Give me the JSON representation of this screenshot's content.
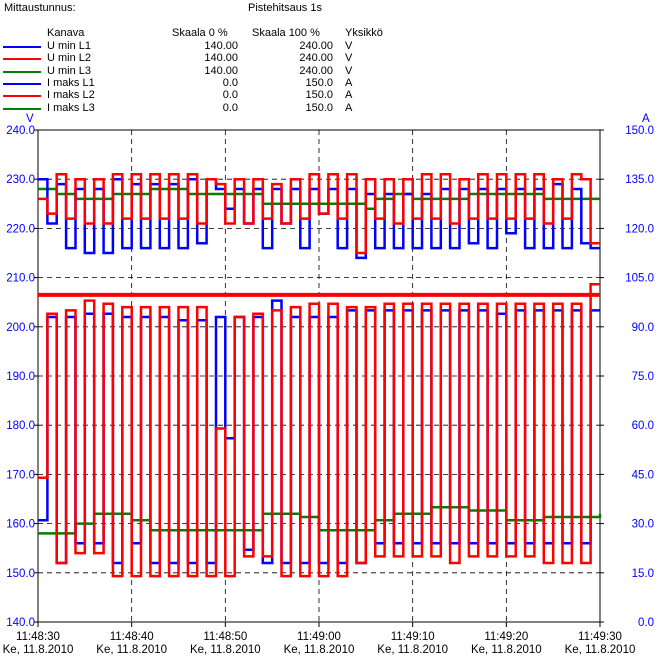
{
  "header": {
    "title_label": "Mittaustunnus:",
    "record_name": "Pistehitsaus 1s",
    "col_channel": "Kanava",
    "col_scale0": "Skaala 0 %",
    "col_scale100": "Skaala 100 %",
    "col_unit": "Yksikkö"
  },
  "legend": [
    {
      "name": "U min L1",
      "scale0": "140.00",
      "scale100": "240.00",
      "unit": "V",
      "color": "#0000ff"
    },
    {
      "name": "U min L2",
      "scale0": "140.00",
      "scale100": "240.00",
      "unit": "V",
      "color": "#ff0000"
    },
    {
      "name": "U min L3",
      "scale0": "140.00",
      "scale100": "240.00",
      "unit": "V",
      "color": "#008000"
    },
    {
      "name": "I maks L1",
      "scale0": "0.0",
      "scale100": "150.0",
      "unit": "A",
      "color": "#0000ff"
    },
    {
      "name": "I maks L2",
      "scale0": "0.0",
      "scale100": "150.0",
      "unit": "A",
      "color": "#ff0000"
    },
    {
      "name": "I maks L3",
      "scale0": "0.0",
      "scale100": "150.0",
      "unit": "A",
      "color": "#008000"
    }
  ],
  "chart_data": {
    "type": "line",
    "title": "",
    "left_axis": {
      "unit": "V",
      "min": 140,
      "max": 240,
      "ticks": [
        "140.0",
        "150.0",
        "160.0",
        "170.0",
        "180.0",
        "190.0",
        "200.0",
        "210.0",
        "220.0",
        "230.0",
        "240.0"
      ]
    },
    "right_axis": {
      "unit": "A",
      "min": 0,
      "max": 150,
      "ticks": [
        "0.0",
        "15.0",
        "30.0",
        "45.0",
        "60.0",
        "75.0",
        "90.0",
        "105.0",
        "120.0",
        "135.0",
        "150.0"
      ]
    },
    "x_axis": {
      "start_s": 0,
      "end_s": 60,
      "ticks": [
        {
          "t": 0,
          "time": "11:48:30",
          "date": "Ke, 11.8.2010"
        },
        {
          "t": 10,
          "time": "11:48:40",
          "date": "Ke, 11.8.2010"
        },
        {
          "t": 20,
          "time": "11:48:50",
          "date": "Ke, 11.8.2010"
        },
        {
          "t": 30,
          "time": "11:49:00",
          "date": "Ke, 11.8.2010"
        },
        {
          "t": 40,
          "time": "11:49:10",
          "date": "Ke, 11.8.2010"
        },
        {
          "t": 50,
          "time": "11:49:20",
          "date": "Ke, 11.8.2010"
        },
        {
          "t": 60,
          "time": "11:49:30",
          "date": "Ke, 11.8.2010"
        }
      ]
    },
    "grid": true,
    "reference_line": {
      "value": 206.5,
      "axis": "left",
      "color": "#ff0000"
    },
    "series": [
      {
        "name": "U min L1",
        "axis": "left",
        "color": "#0000ff",
        "width": 2.5,
        "x": [
          0,
          1,
          2,
          3,
          4,
          5,
          6,
          7,
          8,
          9,
          10,
          11,
          12,
          13,
          14,
          15,
          16,
          17,
          18,
          19,
          20,
          21,
          22,
          23,
          24,
          25,
          26,
          27,
          28,
          29,
          30,
          31,
          32,
          33,
          34,
          35,
          36,
          37,
          38,
          39,
          40,
          41,
          42,
          43,
          44,
          45,
          46,
          47,
          48,
          49,
          50,
          51,
          52,
          53,
          54,
          55,
          56,
          57,
          58,
          59,
          60
        ],
        "y": [
          230,
          221,
          229,
          216,
          228,
          215,
          228,
          215,
          230,
          216,
          229,
          216,
          229,
          216,
          229,
          216,
          230,
          217,
          230,
          228,
          224,
          228,
          221,
          228,
          216,
          228,
          221,
          228,
          216,
          228,
          223,
          228,
          216,
          228,
          214,
          227,
          216,
          227,
          216,
          227,
          216,
          227,
          216,
          228,
          216,
          228,
          217,
          228,
          216,
          228,
          219,
          228,
          216,
          228,
          216,
          229,
          216,
          228,
          217,
          216,
          216
        ]
      },
      {
        "name": "U min L2",
        "axis": "left",
        "color": "#ff0000",
        "width": 2.5,
        "x": [
          0,
          1,
          2,
          3,
          4,
          5,
          6,
          7,
          8,
          9,
          10,
          11,
          12,
          13,
          14,
          15,
          16,
          17,
          18,
          19,
          20,
          21,
          22,
          23,
          24,
          25,
          26,
          27,
          28,
          29,
          30,
          31,
          32,
          33,
          34,
          35,
          36,
          37,
          38,
          39,
          40,
          41,
          42,
          43,
          44,
          45,
          46,
          47,
          48,
          49,
          50,
          51,
          52,
          53,
          54,
          55,
          56,
          57,
          58,
          59,
          60
        ],
        "y": [
          226,
          223,
          231,
          222,
          230,
          221,
          230,
          221,
          231,
          222,
          231,
          222,
          231,
          222,
          231,
          222,
          231,
          221,
          230,
          229,
          221,
          230,
          221,
          230,
          222,
          229,
          221,
          230,
          222,
          231,
          223,
          231,
          222,
          231,
          215,
          230,
          222,
          230,
          221,
          230,
          222,
          231,
          222,
          231,
          221,
          230,
          222,
          231,
          222,
          231,
          222,
          231,
          222,
          231,
          221,
          230,
          222,
          231,
          230,
          217,
          217
        ]
      },
      {
        "name": "U min L3",
        "axis": "left",
        "color": "#008000",
        "width": 2.5,
        "x": [
          0,
          2,
          4,
          6,
          8,
          10,
          12,
          14,
          16,
          18,
          20,
          22,
          24,
          26,
          28,
          30,
          32,
          34,
          35,
          36,
          38,
          40,
          42,
          44,
          46,
          48,
          50,
          52,
          54,
          56,
          58,
          60
        ],
        "y": [
          228,
          227,
          226,
          226,
          227,
          227,
          228,
          228,
          227,
          227,
          227,
          227,
          225,
          225,
          225,
          225,
          225,
          225,
          224,
          226,
          227,
          226,
          226,
          226,
          227,
          227,
          227,
          227,
          226,
          226,
          226,
          226
        ]
      },
      {
        "name": "I maks L1",
        "axis": "right",
        "color": "#0000ff",
        "width": 2.5,
        "x": [
          0,
          1,
          2,
          3,
          4,
          5,
          6,
          7,
          8,
          9,
          10,
          11,
          12,
          13,
          14,
          15,
          16,
          17,
          18,
          19,
          20,
          21,
          22,
          23,
          24,
          25,
          26,
          27,
          28,
          29,
          30,
          31,
          32,
          33,
          34,
          35,
          36,
          37,
          38,
          39,
          40,
          41,
          42,
          43,
          44,
          45,
          46,
          47,
          48,
          49,
          50,
          51,
          52,
          53,
          54,
          55,
          56,
          57,
          58,
          59,
          60
        ],
        "y": [
          31,
          93,
          18,
          93,
          24,
          94,
          24,
          94,
          18,
          93,
          24,
          93,
          18,
          93,
          18,
          92,
          18,
          92,
          18,
          93,
          56,
          93,
          22,
          93,
          18,
          98,
          18,
          93,
          18,
          93,
          18,
          93,
          18,
          95,
          18,
          95,
          24,
          95,
          24,
          95,
          24,
          95,
          24,
          95,
          24,
          95,
          24,
          95,
          24,
          94,
          24,
          95,
          24,
          95,
          24,
          95,
          24,
          95,
          24,
          95,
          95
        ]
      },
      {
        "name": "I maks L2",
        "axis": "right",
        "color": "#ff0000",
        "width": 2.5,
        "x": [
          0,
          1,
          2,
          3,
          4,
          5,
          6,
          7,
          8,
          9,
          10,
          11,
          12,
          13,
          14,
          15,
          16,
          17,
          18,
          19,
          20,
          21,
          22,
          23,
          24,
          25,
          26,
          27,
          28,
          29,
          30,
          31,
          32,
          33,
          34,
          35,
          36,
          37,
          38,
          39,
          40,
          41,
          42,
          43,
          44,
          45,
          46,
          47,
          48,
          49,
          50,
          51,
          52,
          53,
          54,
          55,
          56,
          57,
          58,
          59,
          60
        ],
        "y": [
          44,
          94,
          18,
          95,
          21,
          98,
          21,
          97,
          14,
          96,
          14,
          96,
          14,
          96,
          14,
          96,
          14,
          96,
          14,
          59,
          14,
          93,
          20,
          94,
          20,
          95,
          14,
          96,
          14,
          97,
          14,
          97,
          14,
          96,
          18,
          96,
          20,
          97,
          20,
          97,
          20,
          97,
          20,
          97,
          18,
          97,
          20,
          97,
          20,
          97,
          20,
          97,
          20,
          97,
          18,
          97,
          18,
          97,
          18,
          103,
          103
        ]
      },
      {
        "name": "I maks L3",
        "axis": "right",
        "color": "#008000",
        "width": 2.5,
        "x": [
          0,
          2,
          4,
          6,
          8,
          10,
          12,
          14,
          16,
          18,
          20,
          22,
          24,
          26,
          28,
          30,
          32,
          34,
          35,
          36,
          38,
          40,
          42,
          44,
          46,
          48,
          50,
          52,
          54,
          56,
          58,
          60
        ],
        "y": [
          27,
          27,
          30,
          33,
          33,
          31,
          28,
          28,
          28,
          28,
          28,
          28,
          33,
          33,
          32,
          28,
          28,
          28,
          28,
          31,
          33,
          33,
          35,
          35,
          34,
          34,
          31,
          31,
          32,
          32,
          32,
          33
        ]
      }
    ]
  }
}
